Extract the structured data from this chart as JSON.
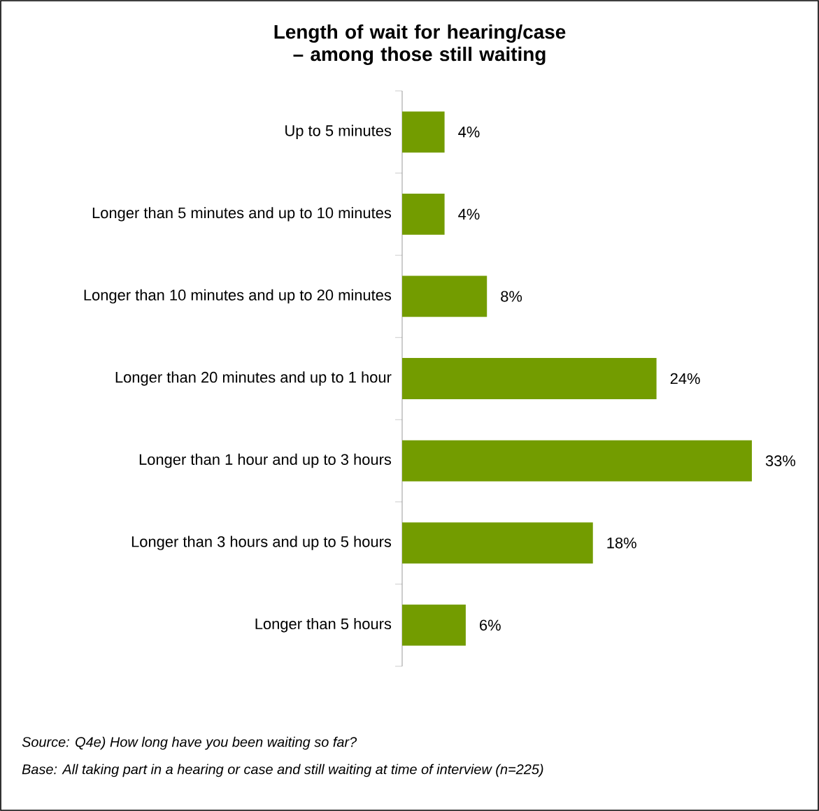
{
  "chart_data": {
    "type": "bar",
    "orientation": "horizontal",
    "title": "**Length of wait for hearing/case – among those still waiting**",
    "categories": [
      "Up to 5 minutes",
      "Longer than 5 minutes and up to 10 minutes",
      "Longer than 10 minutes and up to 20 minutes",
      "Longer than 20 minutes and up to 1 hour",
      "Longer than 1 hour and up to 3 hours",
      "Longer than 3 hours and up to 5 hours",
      "Longer than 5 hours"
    ],
    "values": [
      4,
      4,
      8,
      24,
      33,
      18,
      6
    ],
    "value_labels": [
      "4%",
      "4%",
      "8%",
      "24%",
      "33%",
      "18%",
      "6%"
    ],
    "color": "#739c00",
    "annotations": [
      "Source: Q4e) How long have you been waiting so far?",
      "Base: All taking part in a hearing or case and still waiting at time of interview (n=225)"
    ]
  }
}
